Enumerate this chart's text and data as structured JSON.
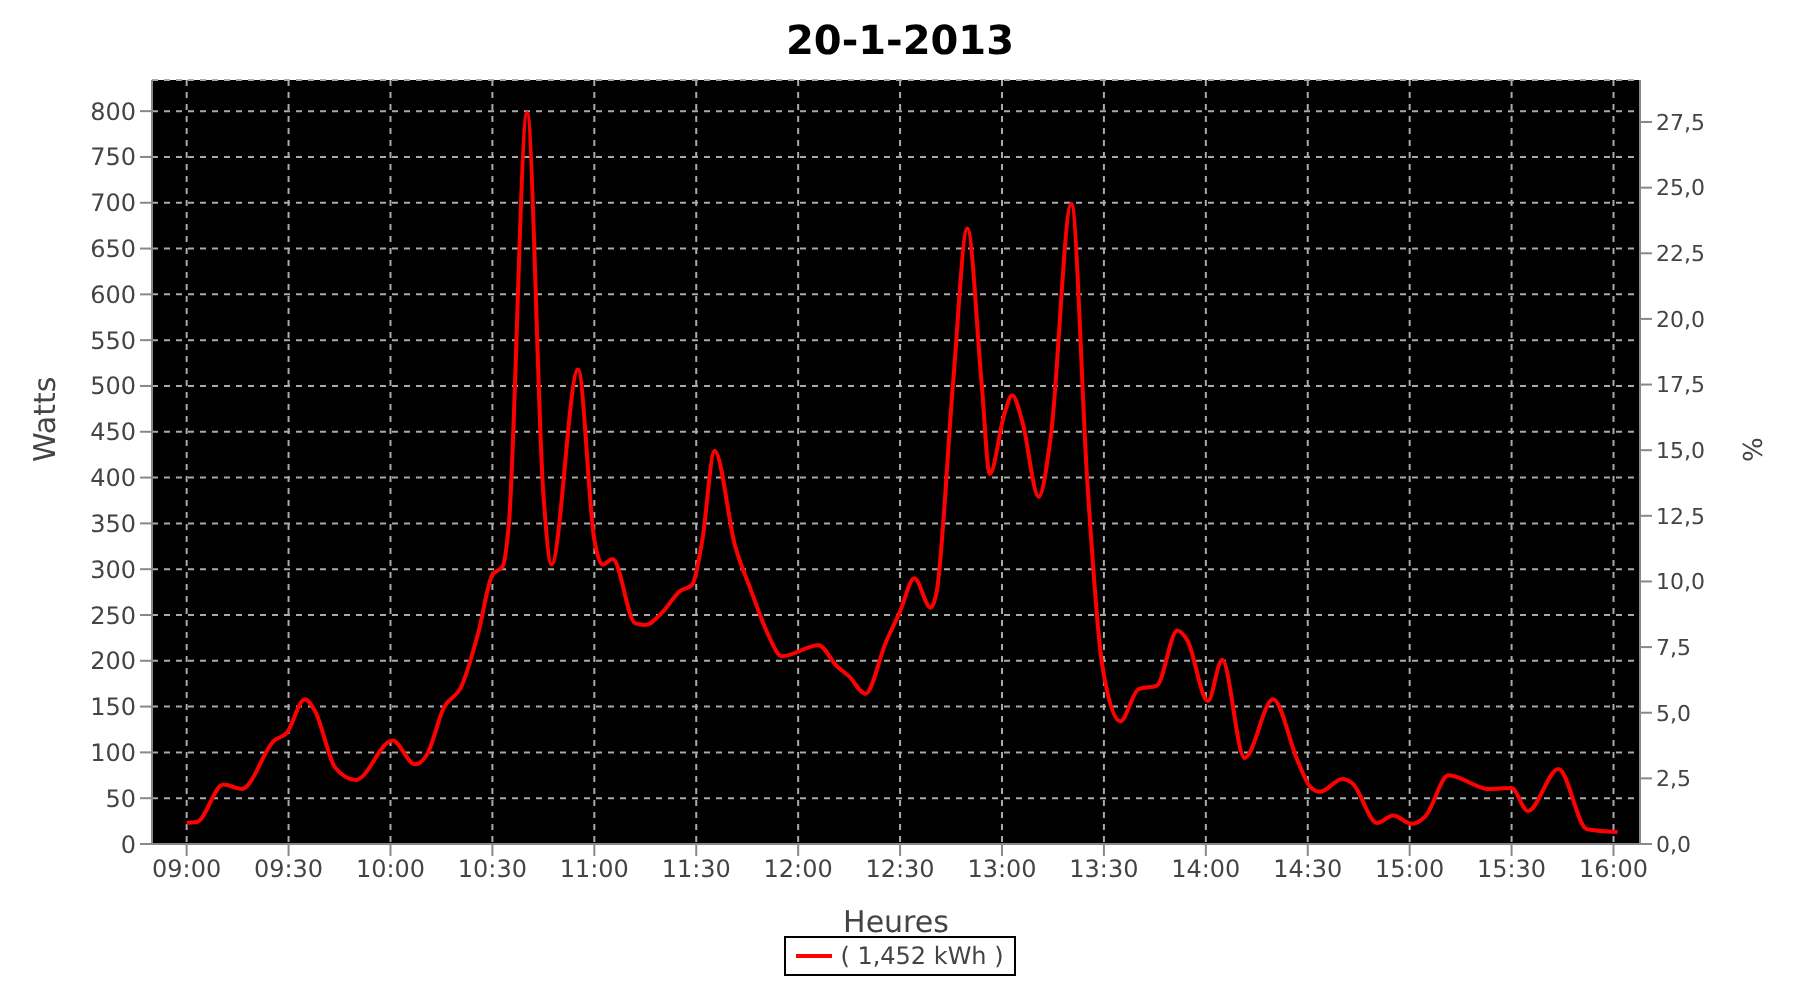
{
  "chart_data": {
    "type": "line",
    "title": "20-1-2013",
    "xlabel": "Heures",
    "ylabel": "Watts",
    "y2label": "%",
    "xlim": [
      8.83,
      16.13
    ],
    "xticks": [
      {
        "value": 9,
        "label": "09:00"
      },
      {
        "value": 9.5,
        "label": "09:30"
      },
      {
        "value": 10,
        "label": "10:00"
      },
      {
        "value": 10.5,
        "label": "10:30"
      },
      {
        "value": 11,
        "label": "11:00"
      },
      {
        "value": 11.5,
        "label": "11:30"
      },
      {
        "value": 12,
        "label": "12:00"
      },
      {
        "value": 12.5,
        "label": "12:30"
      },
      {
        "value": 13,
        "label": "13:00"
      },
      {
        "value": 13.5,
        "label": "13:30"
      },
      {
        "value": 14,
        "label": "14:00"
      },
      {
        "value": 14.5,
        "label": "14:30"
      },
      {
        "value": 15,
        "label": "15:00"
      },
      {
        "value": 15.5,
        "label": "15:30"
      },
      {
        "value": 16,
        "label": "16:00"
      }
    ],
    "ylim": [
      0,
      834
    ],
    "yticks": [
      0,
      50,
      100,
      150,
      200,
      250,
      300,
      350,
      400,
      450,
      500,
      550,
      600,
      650,
      700,
      750,
      800
    ],
    "y2lim": [
      0,
      29.1
    ],
    "y2ticks": [
      {
        "value": 0,
        "label": "0,0"
      },
      {
        "value": 2.5,
        "label": "2,5"
      },
      {
        "value": 5,
        "label": "5,0"
      },
      {
        "value": 7.5,
        "label": "7,5"
      },
      {
        "value": 10,
        "label": "10,0"
      },
      {
        "value": 12.5,
        "label": "12,5"
      },
      {
        "value": 15,
        "label": "15,0"
      },
      {
        "value": 17.5,
        "label": "17,5"
      },
      {
        "value": 20,
        "label": "20,0"
      },
      {
        "value": 22.5,
        "label": "22,5"
      },
      {
        "value": 25,
        "label": "25,0"
      },
      {
        "value": 27.5,
        "label": "27,5"
      }
    ],
    "x": [
      9.0,
      9.05,
      9.18,
      9.27,
      9.43,
      9.49,
      9.58,
      9.63,
      9.73,
      9.83,
      10.01,
      10.12,
      10.18,
      10.26,
      10.35,
      10.43,
      10.5,
      10.55,
      10.58,
      10.67,
      10.75,
      10.79,
      10.92,
      11.0,
      11.04,
      11.09,
      11.2,
      11.25,
      11.33,
      11.42,
      11.48,
      11.53,
      11.59,
      11.69,
      11.77,
      11.85,
      11.92,
      12.1,
      12.19,
      12.25,
      12.33,
      12.43,
      12.5,
      12.57,
      12.65,
      12.68,
      12.76,
      12.83,
      12.9,
      12.94,
      13.01,
      13.05,
      13.1,
      13.18,
      13.24,
      13.34,
      13.42,
      13.49,
      13.58,
      13.67,
      13.76,
      13.86,
      13.91,
      14.01,
      14.08,
      14.19,
      14.33,
      14.45,
      14.51,
      14.56,
      14.67,
      14.72,
      14.84,
      14.92,
      15.01,
      15.08,
      15.19,
      15.39,
      15.5,
      15.58,
      15.73,
      15.87,
      16.02
    ],
    "series": [
      {
        "name": "( 1,452 kWh )",
        "color": "#ff0000",
        "values": [
          23,
          24,
          65,
          60,
          113,
          121,
          158,
          145,
          83,
          70,
          113,
          87,
          98,
          148,
          173,
          230,
          294,
          303,
          347,
          798,
          382,
          305,
          518,
          332,
          305,
          311,
          241,
          239,
          252,
          276,
          283,
          332,
          429,
          326,
          276,
          230,
          205,
          217,
          194,
          183,
          164,
          220,
          254,
          290,
          258,
          276,
          503,
          672,
          503,
          404,
          468,
          490,
          461,
          379,
          446,
          699,
          390,
          198,
          134,
          169,
          173,
          233,
          222,
          156,
          201,
          94,
          158,
          91,
          63,
          57,
          71,
          66,
          23,
          31,
          22,
          31,
          75,
          60,
          61,
          36,
          82,
          16,
          13
        ]
      }
    ],
    "grid": true,
    "legend": "bottom",
    "marker": "none",
    "line_style": "solid"
  }
}
